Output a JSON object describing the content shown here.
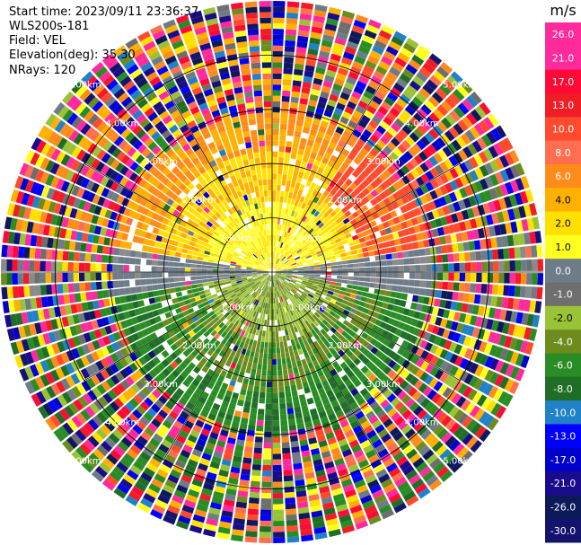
{
  "header": {
    "start_time": "Start time: 2023/09/11 23:36:37",
    "instrument": "WLS200s-181",
    "field": "Field: VEL",
    "elevation": "Elevation(deg): 35.30",
    "nrays": "NRays: 120"
  },
  "colorbar": {
    "unit": "m/s",
    "ticks": [
      "26.0",
      "21.0",
      "17.0",
      "13.0",
      "10.0",
      "8.0",
      "6.0",
      "4.0",
      "2.0",
      "1.0",
      "0.0",
      "-1.0",
      "-2.0",
      "-4.0",
      "-6.0",
      "-8.0",
      "-10.0",
      "-13.0",
      "-17.0",
      "-21.0",
      "-26.0",
      "-30.0"
    ],
    "colors": [
      "#ff2a9c",
      "#ff2b9c",
      "#ff0a36",
      "#f01c26",
      "#ff4a2e",
      "#ff6e50",
      "#ff8c1a",
      "#ffb000",
      "#ffe000",
      "#ffff20",
      "#6e7c88",
      "#6e6e6e",
      "#9ac236",
      "#6e8c1e",
      "#2a8c24",
      "#1e6e26",
      "#2080c8",
      "#0000ff",
      "#0000cc",
      "#1a0a8c",
      "#0c1a5a",
      "#14146e"
    ]
  },
  "chart_data": {
    "type": "heatmap",
    "projection": "polar PPI",
    "field": "VEL",
    "units": "m/s",
    "rays": 120,
    "range_ring_labels": [
      "1.00km",
      "2.00km",
      "3.00km",
      "4.00km",
      "5.00km"
    ],
    "ring_label_positions": [
      "upper-left",
      "upper-right",
      "lower-left",
      "lower-right"
    ],
    "color_range": [
      -30.0,
      26.0
    ],
    "description_regions": [
      {
        "ring": "0-2km",
        "north": "yellow (~2 to 4)",
        "south": "green (~-2 to -6)",
        "east-west": "grey (~0)"
      },
      {
        "ring": "2-3km",
        "north": "orange/yellow (~4 to 8)",
        "south": "green (~-4 to -6)"
      },
      {
        "ring": "3-5km",
        "pattern": "noisy multicolor"
      }
    ]
  }
}
